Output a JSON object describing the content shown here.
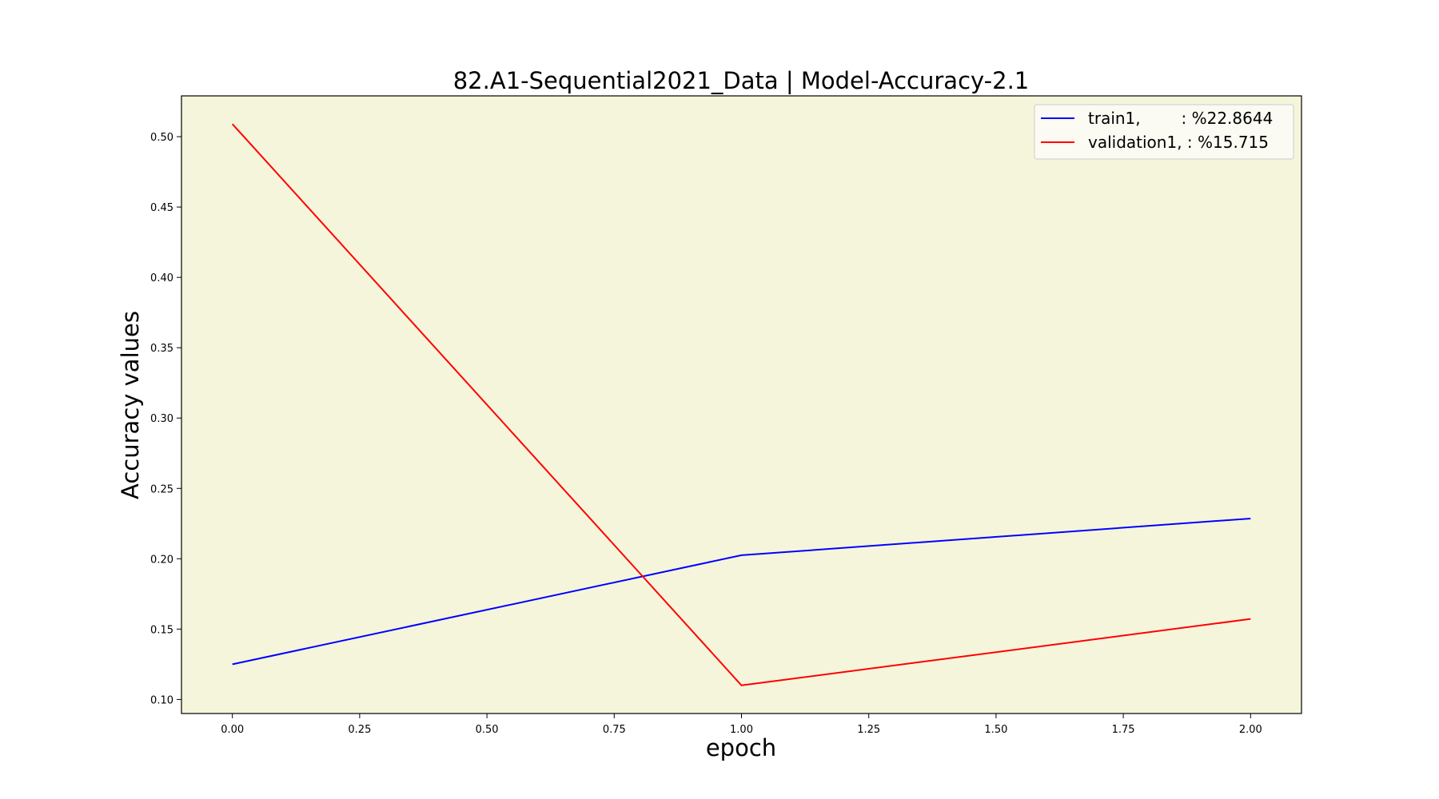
{
  "chart_data": {
    "type": "line",
    "title": "82.A1-Sequential2021_Data | Model-Accuracy-2.1",
    "xlabel": "epoch",
    "ylabel": "Accuracy values",
    "x": [
      0,
      1,
      2
    ],
    "xlim": [
      -0.1,
      2.1
    ],
    "ylim": [
      0.09,
      0.529
    ],
    "xticks": [
      0.0,
      0.25,
      0.5,
      0.75,
      1.0,
      1.25,
      1.5,
      1.75,
      2.0
    ],
    "xtick_labels": [
      "0.00",
      "0.25",
      "0.50",
      "0.75",
      "1.00",
      "1.25",
      "1.50",
      "1.75",
      "2.00"
    ],
    "yticks": [
      0.1,
      0.15,
      0.2,
      0.25,
      0.3,
      0.35,
      0.4,
      0.45,
      0.5
    ],
    "ytick_labels": [
      "0.10",
      "0.15",
      "0.20",
      "0.25",
      "0.30",
      "0.35",
      "0.40",
      "0.45",
      "0.50"
    ],
    "grid": false,
    "legend_position": "top-right",
    "background_color": "#f5f5dc",
    "series": [
      {
        "name": "train1,        : %22.8644",
        "color": "#0000ff",
        "values": [
          0.125,
          0.2025,
          0.2286
        ]
      },
      {
        "name": "validation1, : %15.715",
        "color": "#ff0000",
        "values": [
          0.509,
          0.11,
          0.1572
        ]
      }
    ]
  }
}
